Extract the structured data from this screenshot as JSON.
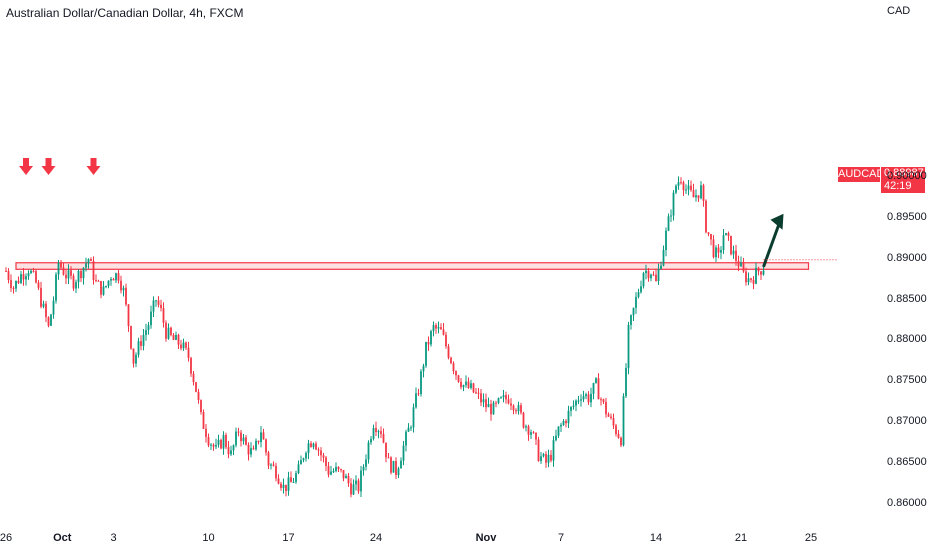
{
  "header": {
    "title": "Australian Dollar/Canadian Dollar, 4h, FXCM",
    "currency": "CAD"
  },
  "badge": {
    "symbol": "AUDCAD",
    "price": "0.88987",
    "countdown": "42:19"
  },
  "colors": {
    "up": "#089981",
    "down": "#f23645",
    "zone": "#f23645",
    "arrow_dark": "#0b3d2e"
  },
  "chart_data": {
    "type": "candlestick",
    "ylim": [
      0.858,
      0.918
    ],
    "y_ticks": [
      "0.90000",
      "0.89500",
      "0.89000",
      "0.88500",
      "0.88000",
      "0.87500",
      "0.87000",
      "0.86500",
      "0.86000"
    ],
    "x_ticks": [
      "26",
      "Oct",
      "3",
      "10",
      "17",
      "24",
      "Nov",
      "7",
      "14",
      "21",
      "25"
    ],
    "x_tick_index": [
      0,
      22.5,
      43,
      81,
      113,
      148,
      192,
      222,
      260,
      294,
      322
    ],
    "candles_note": "approximate path read from the plot",
    "close_path": [
      [
        0,
        0.8885
      ],
      [
        3,
        0.8865
      ],
      [
        6,
        0.888
      ],
      [
        9,
        0.8888
      ],
      [
        12,
        0.887
      ],
      [
        15,
        0.8838
      ],
      [
        17,
        0.8815
      ],
      [
        19,
        0.885
      ],
      [
        21,
        0.8895
      ],
      [
        24,
        0.888
      ],
      [
        27,
        0.8872
      ],
      [
        30,
        0.8885
      ],
      [
        33,
        0.89
      ],
      [
        36,
        0.887
      ],
      [
        39,
        0.886
      ],
      [
        42,
        0.888
      ],
      [
        45,
        0.888
      ],
      [
        47,
        0.886
      ],
      [
        49,
        0.882
      ],
      [
        51,
        0.8775
      ],
      [
        54,
        0.88
      ],
      [
        57,
        0.882
      ],
      [
        60,
        0.885
      ],
      [
        62,
        0.8835
      ],
      [
        64,
        0.881
      ],
      [
        67,
        0.88
      ],
      [
        70,
        0.8795
      ],
      [
        73,
        0.878
      ],
      [
        76,
        0.874
      ],
      [
        78,
        0.8705
      ],
      [
        81,
        0.868
      ],
      [
        84,
        0.8665
      ],
      [
        87,
        0.868
      ],
      [
        90,
        0.866
      ],
      [
        93,
        0.869
      ],
      [
        96,
        0.867
      ],
      [
        99,
        0.866
      ],
      [
        102,
        0.869
      ],
      [
        105,
        0.865
      ],
      [
        108,
        0.864
      ],
      [
        111,
        0.862
      ],
      [
        114,
        0.8625
      ],
      [
        117,
        0.864
      ],
      [
        120,
        0.867
      ],
      [
        123,
        0.868
      ],
      [
        126,
        0.866
      ],
      [
        129,
        0.864
      ],
      [
        132,
        0.864
      ],
      [
        135,
        0.8635
      ],
      [
        138,
        0.862
      ],
      [
        141,
        0.862
      ],
      [
        144,
        0.866
      ],
      [
        147,
        0.87
      ],
      [
        150,
        0.869
      ],
      [
        153,
        0.865
      ],
      [
        156,
        0.864
      ],
      [
        159,
        0.867
      ],
      [
        162,
        0.87
      ],
      [
        165,
        0.874
      ],
      [
        168,
        0.879
      ],
      [
        171,
        0.8815
      ],
      [
        174,
        0.881
      ],
      [
        177,
        0.8785
      ],
      [
        180,
        0.876
      ],
      [
        183,
        0.8745
      ],
      [
        186,
        0.874
      ],
      [
        189,
        0.873
      ],
      [
        192,
        0.872
      ],
      [
        195,
        0.8715
      ],
      [
        198,
        0.8725
      ],
      [
        201,
        0.873
      ],
      [
        204,
        0.872
      ],
      [
        207,
        0.87
      ],
      [
        210,
        0.869
      ],
      [
        213,
        0.866
      ],
      [
        216,
        0.865
      ],
      [
        218,
        0.866
      ],
      [
        221,
        0.869
      ],
      [
        224,
        0.8705
      ],
      [
        227,
        0.872
      ],
      [
        230,
        0.8735
      ],
      [
        233,
        0.873
      ],
      [
        236,
        0.8745
      ],
      [
        239,
        0.872
      ],
      [
        242,
        0.87
      ],
      [
        244,
        0.869
      ],
      [
        246,
        0.868
      ],
      [
        249,
        0.881
      ],
      [
        252,
        0.885
      ],
      [
        255,
        0.8885
      ],
      [
        258,
        0.8885
      ],
      [
        260,
        0.887
      ],
      [
        263,
        0.8915
      ],
      [
        266,
        0.896
      ],
      [
        268,
        0.899
      ],
      [
        270,
        0.9
      ],
      [
        272,
        0.8985
      ],
      [
        275,
        0.8975
      ],
      [
        278,
        0.8985
      ],
      [
        280,
        0.894
      ],
      [
        283,
        0.891
      ],
      [
        285,
        0.89
      ],
      [
        287,
        0.893
      ],
      [
        289,
        0.892
      ],
      [
        291,
        0.8905
      ],
      [
        293,
        0.8895
      ],
      [
        295,
        0.888
      ],
      [
        297,
        0.8875
      ],
      [
        299,
        0.8878
      ],
      [
        301,
        0.8885
      ],
      [
        303,
        0.889
      ]
    ],
    "resistance_zone": [
      0.8887,
      0.8895
    ],
    "zone_range_index": [
      4,
      321
    ],
    "down_arrows_index": [
      8,
      17,
      35
    ],
    "projection_arrow": {
      "from": [
        303,
        0.889
      ],
      "to": [
        311,
        0.8955
      ]
    }
  }
}
